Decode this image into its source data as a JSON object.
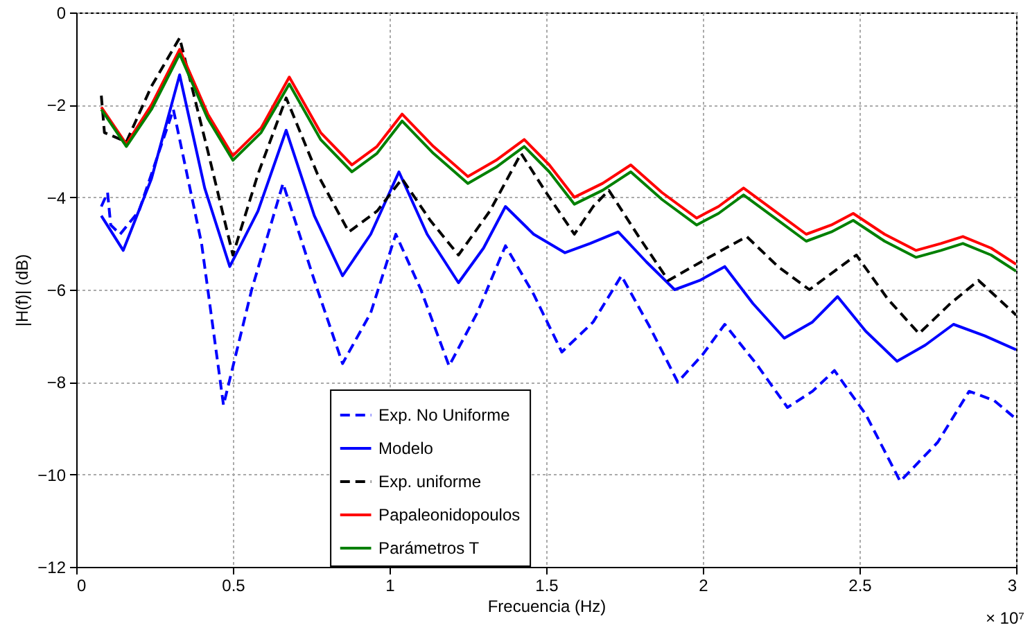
{
  "chart_data": {
    "type": "line",
    "xlabel": "Frecuencia    (Hz)",
    "ylabel": "|H(f)|    (dB)",
    "xlim": [
      0,
      3
    ],
    "xticks": [
      0,
      0.5,
      1,
      1.5,
      2,
      2.5,
      3
    ],
    "ylim": [
      -12,
      0
    ],
    "yticks": [
      -12,
      -10,
      -8,
      -6,
      -4,
      -2,
      0
    ],
    "grid": true,
    "legend": "bottom",
    "marker": "none",
    "annotations": [
      "× 10⁷"
    ],
    "series": [
      {
        "name": "Exp. No Uniforme",
        "color": "#0000ff",
        "line_style": "dashed",
        "x": [
          0.08,
          0.1,
          0.11,
          0.14,
          0.2,
          0.31,
          0.4,
          0.47,
          0.56,
          0.66,
          0.76,
          0.85,
          0.94,
          1.02,
          1.1,
          1.19,
          1.28,
          1.37,
          1.46,
          1.55,
          1.65,
          1.74,
          1.83,
          1.92,
          2.0,
          2.07,
          2.17,
          2.27,
          2.35,
          2.42,
          2.52,
          2.63,
          2.75,
          2.85,
          2.93,
          3.0
        ],
        "values": [
          -4.2,
          -3.9,
          -4.6,
          -4.8,
          -4.3,
          -2.1,
          -5.0,
          -8.5,
          -6.0,
          -3.7,
          -5.8,
          -7.6,
          -6.5,
          -4.8,
          -6.0,
          -7.65,
          -6.5,
          -5.05,
          -6.1,
          -7.35,
          -6.7,
          -5.7,
          -6.8,
          -8.0,
          -7.4,
          -6.75,
          -7.6,
          -8.55,
          -8.2,
          -7.75,
          -8.7,
          -10.15,
          -9.3,
          -8.2,
          -8.4,
          -8.8
        ]
      },
      {
        "name": "Modelo",
        "color": "#0000ff",
        "line_style": "solid",
        "x": [
          0.08,
          0.15,
          0.24,
          0.33,
          0.41,
          0.49,
          0.58,
          0.67,
          0.76,
          0.85,
          0.94,
          1.03,
          1.12,
          1.22,
          1.3,
          1.37,
          1.46,
          1.56,
          1.64,
          1.73,
          1.82,
          1.91,
          1.99,
          2.07,
          2.16,
          2.26,
          2.35,
          2.43,
          2.52,
          2.62,
          2.71,
          2.8,
          2.9,
          3.0
        ],
        "values": [
          -4.4,
          -5.15,
          -3.6,
          -1.35,
          -3.8,
          -5.5,
          -4.3,
          -2.55,
          -4.4,
          -5.7,
          -4.8,
          -3.45,
          -4.8,
          -5.85,
          -5.1,
          -4.2,
          -4.8,
          -5.2,
          -5.0,
          -4.75,
          -5.4,
          -6.0,
          -5.8,
          -5.5,
          -6.3,
          -7.05,
          -6.7,
          -6.15,
          -6.9,
          -7.55,
          -7.2,
          -6.75,
          -7.0,
          -7.3
        ]
      },
      {
        "name": "Exp. uniforme",
        "color": "#000000",
        "line_style": "dashed",
        "x": [
          0.08,
          0.09,
          0.16,
          0.24,
          0.33,
          0.42,
          0.5,
          0.58,
          0.67,
          0.77,
          0.87,
          0.96,
          1.04,
          1.13,
          1.22,
          1.32,
          1.42,
          1.5,
          1.59,
          1.65,
          1.7,
          1.8,
          1.89,
          2.02,
          2.14,
          2.24,
          2.34,
          2.42,
          2.49,
          2.59,
          2.69,
          2.79,
          2.88,
          3.0
        ],
        "values": [
          -1.8,
          -2.6,
          -2.8,
          -1.6,
          -0.55,
          -3.0,
          -5.25,
          -3.5,
          -1.85,
          -3.5,
          -4.75,
          -4.3,
          -3.6,
          -4.5,
          -5.25,
          -4.3,
          -3.05,
          -3.9,
          -4.8,
          -4.2,
          -3.85,
          -4.9,
          -5.8,
          -5.3,
          -4.85,
          -5.5,
          -6.0,
          -5.6,
          -5.25,
          -6.2,
          -6.95,
          -6.3,
          -5.8,
          -6.55
        ]
      },
      {
        "name": "Papaleonidopoulos",
        "color": "#ff0000",
        "line_style": "solid",
        "x": [
          0.08,
          0.16,
          0.24,
          0.33,
          0.42,
          0.5,
          0.59,
          0.68,
          0.78,
          0.88,
          0.96,
          1.04,
          1.14,
          1.25,
          1.34,
          1.43,
          1.51,
          1.59,
          1.68,
          1.77,
          1.87,
          1.98,
          2.05,
          2.13,
          2.23,
          2.33,
          2.41,
          2.48,
          2.58,
          2.68,
          2.76,
          2.83,
          2.92,
          3.0
        ],
        "values": [
          -2.05,
          -2.85,
          -2.0,
          -0.8,
          -2.2,
          -3.1,
          -2.5,
          -1.4,
          -2.6,
          -3.3,
          -2.9,
          -2.2,
          -2.9,
          -3.55,
          -3.2,
          -2.75,
          -3.3,
          -4.0,
          -3.7,
          -3.3,
          -3.9,
          -4.45,
          -4.2,
          -3.8,
          -4.3,
          -4.8,
          -4.6,
          -4.35,
          -4.8,
          -5.15,
          -5.0,
          -4.85,
          -5.1,
          -5.45
        ]
      },
      {
        "name": "Parámetros T",
        "color": "#008000",
        "line_style": "solid",
        "x": [
          0.08,
          0.16,
          0.24,
          0.33,
          0.42,
          0.5,
          0.59,
          0.68,
          0.78,
          0.88,
          0.96,
          1.04,
          1.14,
          1.25,
          1.34,
          1.43,
          1.51,
          1.59,
          1.68,
          1.77,
          1.87,
          1.98,
          2.05,
          2.13,
          2.23,
          2.33,
          2.41,
          2.48,
          2.58,
          2.68,
          2.76,
          2.83,
          2.92,
          3.0
        ],
        "values": [
          -2.1,
          -2.9,
          -2.1,
          -0.9,
          -2.3,
          -3.2,
          -2.6,
          -1.55,
          -2.75,
          -3.45,
          -3.05,
          -2.35,
          -3.05,
          -3.7,
          -3.35,
          -2.9,
          -3.45,
          -4.15,
          -3.85,
          -3.45,
          -4.05,
          -4.6,
          -4.35,
          -3.95,
          -4.45,
          -4.95,
          -4.75,
          -4.5,
          -4.95,
          -5.3,
          -5.15,
          -5.0,
          -5.25,
          -5.6
        ]
      }
    ]
  }
}
